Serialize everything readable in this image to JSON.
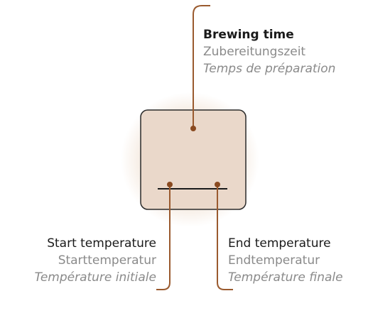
{
  "labels": [
    {
      "title": "Brewing time",
      "de": "Zubereitungszeit",
      "fr": "Temps de préparation"
    },
    {
      "title": "Start temperature",
      "de": "Starttemperatur",
      "fr": "Température initiale"
    },
    {
      "title": "End temperature",
      "de": "Endtemperatur",
      "fr": "Température finale"
    }
  ]
}
